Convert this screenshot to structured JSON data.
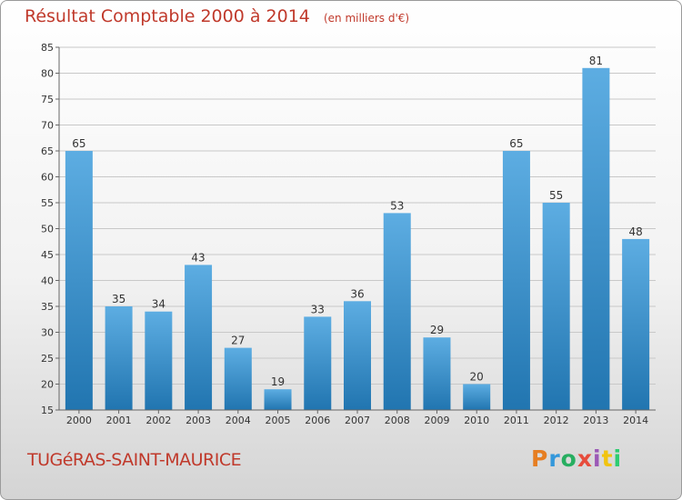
{
  "header": {
    "title": "Résultat Comptable 2000 à 2014",
    "unit": "(en milliers d'€)"
  },
  "footer": {
    "commune": "TUGéRAS-SAINT-MAURICE",
    "logo": "Proxiti"
  },
  "colors": {
    "title": "#c0392b",
    "bar_top": "#5dade2",
    "bar_bottom": "#2175b0",
    "axis": "#666666",
    "grid": "#c8c8c8"
  },
  "chart_data": {
    "type": "bar",
    "title": "Résultat Comptable 2000 à 2014",
    "subtitle": "(en milliers d'€)",
    "xlabel": "",
    "ylabel": "",
    "categories": [
      "2000",
      "2001",
      "2002",
      "2003",
      "2004",
      "2005",
      "2006",
      "2007",
      "2008",
      "2009",
      "2010",
      "2011",
      "2012",
      "2013",
      "2014"
    ],
    "values": [
      65,
      35,
      34,
      43,
      27,
      19,
      33,
      36,
      53,
      29,
      20,
      65,
      55,
      81,
      48
    ],
    "ylim": [
      15,
      85
    ],
    "yticks": [
      15,
      20,
      25,
      30,
      35,
      40,
      45,
      50,
      55,
      60,
      65,
      70,
      75,
      80,
      85
    ],
    "grid": "horizontal",
    "legend": "none"
  }
}
